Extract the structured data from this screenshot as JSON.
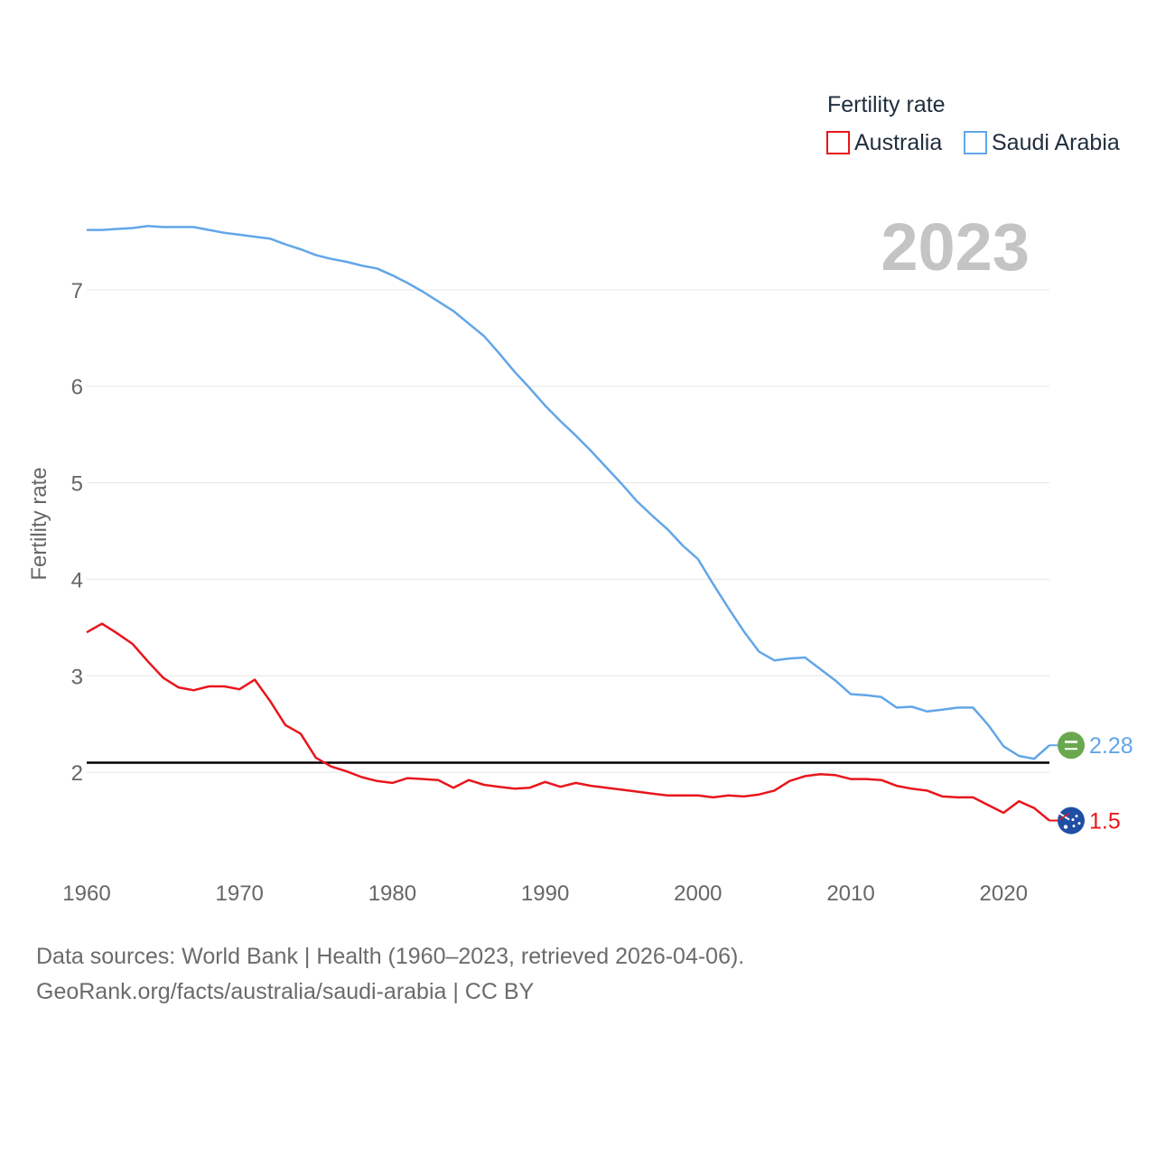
{
  "colors": {
    "australia": "#e8161c",
    "saudi_arabia": "#62a6e8",
    "reference_line": "#000000",
    "saudi_flag": "#6aa84f",
    "australia_flag": "#1f4fa5"
  },
  "chart_data": {
    "type": "line",
    "title": "Fertility rate",
    "year_label": "2023",
    "xlabel": "",
    "ylabel": "Fertility rate",
    "xlim": [
      1960,
      2023
    ],
    "ylim": [
      1.0,
      8.0
    ],
    "x_ticks": [
      1960,
      1970,
      1980,
      1990,
      2000,
      2010,
      2020
    ],
    "x_tick_labels": [
      "1960",
      "1970",
      "1980",
      "1990",
      "2000",
      "2010",
      "2020"
    ],
    "y_ticks": [
      2,
      3,
      4,
      5,
      6,
      7
    ],
    "y_tick_labels": [
      "2",
      "3",
      "4",
      "5",
      "6",
      "7"
    ],
    "reference_line": 2.1,
    "legend": {
      "title": "Fertility rate",
      "position": "top-right"
    },
    "x": [
      1960,
      1961,
      1962,
      1963,
      1964,
      1965,
      1966,
      1967,
      1968,
      1969,
      1970,
      1971,
      1972,
      1973,
      1974,
      1975,
      1976,
      1977,
      1978,
      1979,
      1980,
      1981,
      1982,
      1983,
      1984,
      1985,
      1986,
      1987,
      1988,
      1989,
      1990,
      1991,
      1992,
      1993,
      1994,
      1995,
      1996,
      1997,
      1998,
      1999,
      2000,
      2001,
      2002,
      2003,
      2004,
      2005,
      2006,
      2007,
      2008,
      2009,
      2010,
      2011,
      2012,
      2013,
      2014,
      2015,
      2016,
      2017,
      2018,
      2019,
      2020,
      2021,
      2022,
      2023
    ],
    "series": [
      {
        "name": "Australia",
        "color_key": "australia",
        "end_label": "1.5",
        "values": [
          3.45,
          3.54,
          3.44,
          3.33,
          3.15,
          2.98,
          2.88,
          2.85,
          2.89,
          2.89,
          2.86,
          2.96,
          2.74,
          2.49,
          2.4,
          2.15,
          2.06,
          2.01,
          1.95,
          1.91,
          1.89,
          1.94,
          1.93,
          1.92,
          1.84,
          1.92,
          1.87,
          1.85,
          1.83,
          1.84,
          1.9,
          1.85,
          1.89,
          1.86,
          1.84,
          1.82,
          1.8,
          1.78,
          1.76,
          1.76,
          1.76,
          1.74,
          1.76,
          1.75,
          1.77,
          1.81,
          1.91,
          1.96,
          1.98,
          1.97,
          1.93,
          1.93,
          1.92,
          1.86,
          1.83,
          1.81,
          1.75,
          1.74,
          1.74,
          1.66,
          1.58,
          1.7,
          1.63,
          1.5
        ]
      },
      {
        "name": "Saudi Arabia",
        "color_key": "saudi_arabia",
        "end_label": "2.28",
        "values": [
          7.62,
          7.62,
          7.63,
          7.64,
          7.66,
          7.65,
          7.65,
          7.65,
          7.62,
          7.59,
          7.57,
          7.55,
          7.53,
          7.47,
          7.42,
          7.36,
          7.32,
          7.29,
          7.25,
          7.22,
          7.15,
          7.07,
          6.98,
          6.88,
          6.78,
          6.65,
          6.52,
          6.34,
          6.15,
          5.98,
          5.8,
          5.64,
          5.49,
          5.33,
          5.16,
          4.99,
          4.81,
          4.66,
          4.52,
          4.35,
          4.21,
          3.95,
          3.7,
          3.46,
          3.25,
          3.16,
          3.18,
          3.19,
          3.07,
          2.95,
          2.81,
          2.8,
          2.78,
          2.67,
          2.68,
          2.63,
          2.65,
          2.67,
          2.67,
          2.49,
          2.27,
          2.17,
          2.14,
          2.28
        ]
      }
    ]
  },
  "footer": {
    "line1": "Data sources: World Bank | Health (1960–2023, retrieved 2026-04-06).",
    "line2": "GeoRank.org/facts/australia/saudi-arabia | CC BY"
  }
}
